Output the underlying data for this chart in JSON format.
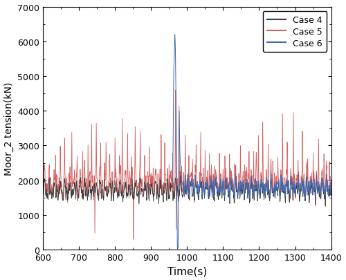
{
  "title": "",
  "xlabel": "Time(s)",
  "ylabel": "Moor_2 tension(kN)",
  "xlim": [
    600,
    1400
  ],
  "ylim": [
    0,
    7000
  ],
  "xticks": [
    600,
    700,
    800,
    900,
    1000,
    1100,
    1200,
    1300,
    1400
  ],
  "yticks": [
    0,
    1000,
    2000,
    3000,
    4000,
    5000,
    6000,
    7000
  ],
  "case4_color": "#404040",
  "case5_color": "#d45f5f",
  "case6_color": "#4169b0",
  "legend_labels": [
    "Case 4",
    "Case 5",
    "Case 6"
  ],
  "legend_loc": "upper right",
  "figsize": [
    5.0,
    4.06
  ],
  "dpi": 100,
  "background_color": "#ffffff",
  "seed": 42,
  "t_start": 600,
  "t_end": 1400,
  "dt": 0.5
}
